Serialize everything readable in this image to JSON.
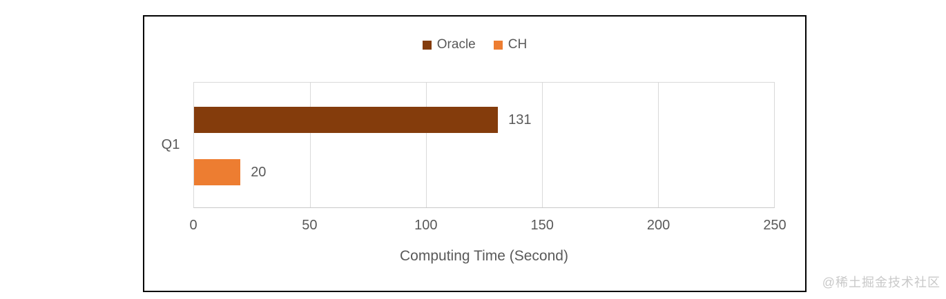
{
  "chart_data": {
    "type": "bar",
    "orientation": "horizontal",
    "categories": [
      "Q1"
    ],
    "series": [
      {
        "name": "Oracle",
        "color": "#843C0C",
        "values": [
          131
        ]
      },
      {
        "name": "CH",
        "color": "#ED7D31",
        "values": [
          20
        ]
      }
    ],
    "xlabel": "Computing Time (Second)",
    "xlim": [
      0,
      250
    ],
    "xticks": [
      "0",
      "50",
      "100",
      "150",
      "200",
      "250"
    ],
    "grid": true,
    "legend_position": "top-center",
    "data_labels": true
  },
  "legend": {
    "items": [
      {
        "label": "Oracle",
        "color": "#843C0C"
      },
      {
        "label": "CH",
        "color": "#ED7D31"
      }
    ]
  },
  "axis": {
    "category_label": "Q1",
    "x_title": "Computing Time (Second)"
  },
  "watermark": {
    "text": "@稀土掘金技术社区"
  },
  "colors": {
    "text": "#595959",
    "gridline": "#d9d9d9",
    "chart_border": "#000000",
    "background": "#ffffff"
  }
}
